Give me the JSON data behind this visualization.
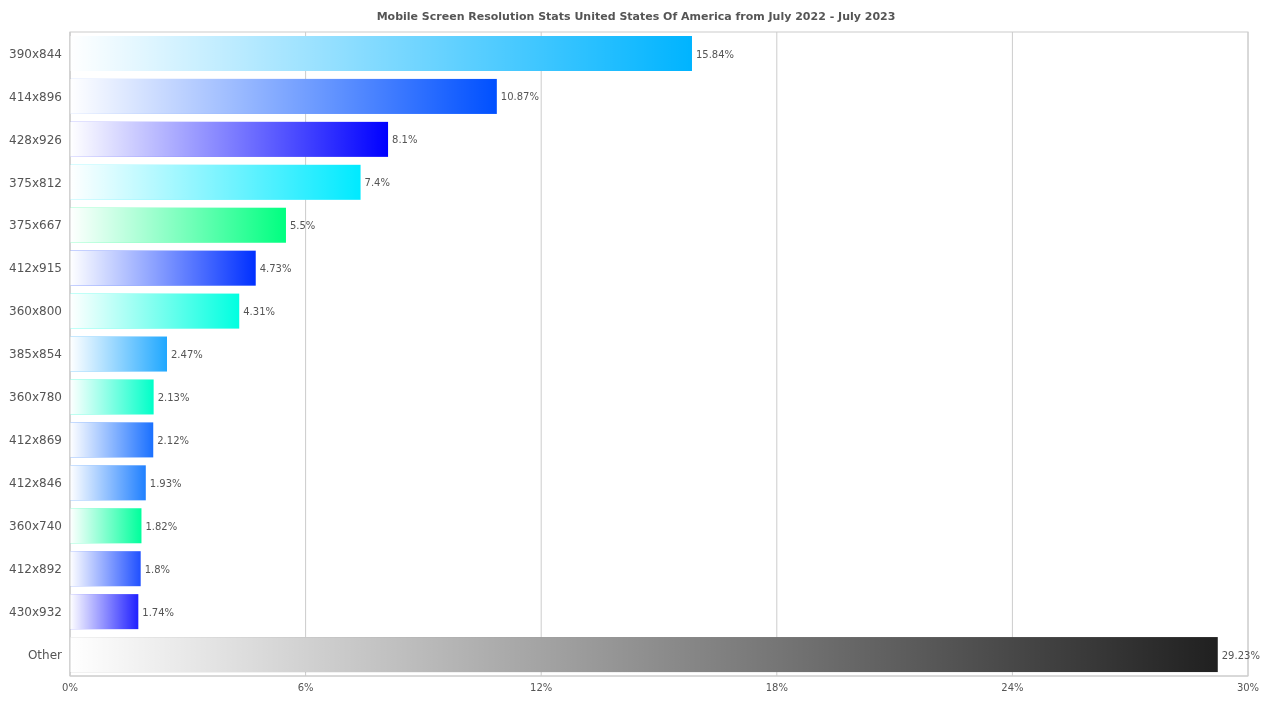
{
  "chart_data": {
    "type": "bar",
    "orientation": "horizontal",
    "subtitle": "Mobile Screen Resolution Stats United States Of America from July 2022 - July 2023",
    "categories": [
      "390x844",
      "414x896",
      "428x926",
      "375x812",
      "375x667",
      "412x915",
      "360x800",
      "385x854",
      "360x780",
      "412x869",
      "412x846",
      "360x740",
      "412x892",
      "430x932",
      "Other"
    ],
    "values": [
      15.84,
      10.87,
      8.1,
      7.4,
      5.5,
      4.73,
      4.31,
      2.47,
      2.13,
      2.12,
      1.93,
      1.82,
      1.8,
      1.74,
      29.23
    ],
    "value_labels": [
      "15.84%",
      "10.87%",
      "8.1%",
      "7.4%",
      "5.5%",
      "4.73%",
      "4.31%",
      "2.47%",
      "2.13%",
      "2.12%",
      "1.93%",
      "1.82%",
      "1.8%",
      "1.74%",
      "29.23%"
    ],
    "colors": [
      "#00b4ff",
      "#0050ff",
      "#0000ff",
      "#00eaff",
      "#00ff80",
      "#0030ff",
      "#00ffe0",
      "#20a8ff",
      "#00ffc8",
      "#1a70ff",
      "#2080ff",
      "#00ff9c",
      "#2050ff",
      "#2020ff",
      "#202020"
    ],
    "xlim": [
      0,
      30
    ],
    "xticks": [
      {
        "value": 0,
        "label": "0%"
      },
      {
        "value": 6,
        "label": "6%"
      },
      {
        "value": 12,
        "label": "12%"
      },
      {
        "value": 18,
        "label": "18%"
      },
      {
        "value": 24,
        "label": "24%"
      },
      {
        "value": 30,
        "label": "30%"
      }
    ],
    "grid": "x",
    "legend": false
  }
}
